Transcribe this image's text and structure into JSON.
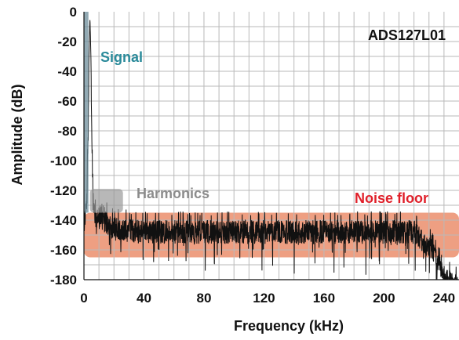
{
  "chart_data": {
    "type": "line",
    "title": "ADS127L01",
    "xlabel": "Frequency (kHz)",
    "ylabel": "Amplitude (dB)",
    "xlim": [
      0,
      250
    ],
    "ylim": [
      -180,
      0
    ],
    "xticks": [
      0,
      40,
      80,
      120,
      160,
      200,
      240
    ],
    "yticks": [
      0,
      -20,
      -40,
      -60,
      -80,
      -100,
      -120,
      -140,
      -160,
      -180
    ],
    "grid": true,
    "series": [
      {
        "name": "",
        "color": "#111111",
        "points": [
          {
            "x": 0,
            "y": -135
          },
          {
            "x": 2,
            "y": -120
          },
          {
            "x": 4,
            "y": 0
          },
          {
            "x": 6,
            "y": -120
          },
          {
            "x": 8,
            "y": -134
          },
          {
            "x": 12,
            "y": -128
          },
          {
            "x": 16,
            "y": -135
          },
          {
            "x": 20,
            "y": -138
          },
          {
            "x": 40,
            "y": -140
          },
          {
            "x": 80,
            "y": -140
          },
          {
            "x": 120,
            "y": -140
          },
          {
            "x": 160,
            "y": -140
          },
          {
            "x": 200,
            "y": -140
          },
          {
            "x": 220,
            "y": -140
          },
          {
            "x": 230,
            "y": -150
          },
          {
            "x": 240,
            "y": -170
          },
          {
            "x": 250,
            "y": -178
          }
        ]
      }
    ],
    "annotations": [
      {
        "text": "Signal",
        "color": "#2a8a9a"
      },
      {
        "text": "Harmonics",
        "color": "#8c8c8c"
      },
      {
        "text": "Noise floor",
        "color": "#e0202a"
      }
    ],
    "highlight_regions": [
      {
        "label": "Signal",
        "color": "#6e8d9b",
        "x": [
          0,
          3
        ],
        "y": [
          -135,
          0
        ]
      },
      {
        "label": "Harmonics",
        "color": "#9a9a9a",
        "x": [
          4,
          26
        ],
        "y": [
          -135,
          -119
        ]
      },
      {
        "label": "Noise floor",
        "color": "#ee9f82",
        "x": [
          0,
          250
        ],
        "y": [
          -165,
          -135
        ]
      }
    ]
  }
}
